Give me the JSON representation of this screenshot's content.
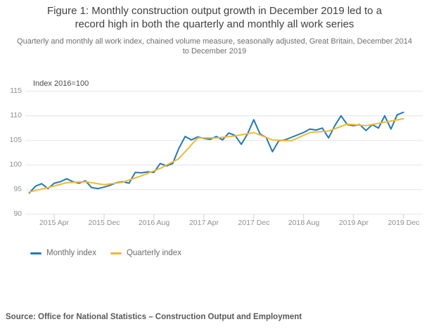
{
  "figure": {
    "title": "Figure 1: Monthly construction output growth in December 2019 led to a record high in both the quarterly and monthly all work series",
    "subtitle": "Quarterly and monthly all work index, chained volume measure, seasonally adjusted, Great Britain, December 2014 to December 2019",
    "source": "Source: Office for National Statistics – Construction Output and Employment"
  },
  "chart_data": {
    "type": "line",
    "title": "Quarterly and monthly all work index",
    "unit_label": "Index 2016=100",
    "grid": "horizontal",
    "legend_position": "bottom-left",
    "x_axis": {
      "start": "2014 Dec",
      "end": "2019 Dec",
      "tick_labels": [
        "2015 Apr",
        "2015 Dec",
        "2016 Aug",
        "2017 Apr",
        "2017 Dec",
        "2018 Aug",
        "2019 Apr",
        "2019 Dec"
      ],
      "tick_month_offsets": [
        4,
        12,
        20,
        28,
        36,
        44,
        52,
        60
      ]
    },
    "y_axis": {
      "ticks": [
        90,
        95,
        100,
        105,
        110,
        115
      ],
      "min": 90,
      "max": 116.5
    },
    "series": [
      {
        "name": "Monthly index",
        "color": "#2279b5",
        "frequency": "monthly",
        "month_step": 1,
        "values": [
          94.3,
          95.7,
          96.2,
          95.2,
          96.3,
          96.6,
          97.2,
          96.6,
          96.3,
          96.8,
          95.4,
          95.2,
          95.5,
          95.9,
          96.4,
          96.6,
          96.3,
          98.5,
          98.4,
          98.6,
          98.5,
          100.3,
          99.8,
          100.3,
          103.4,
          105.8,
          105.1,
          105.7,
          105.4,
          105.2,
          105.8,
          105.1,
          106.5,
          106.0,
          104.2,
          106.3,
          109.2,
          106.3,
          105.6,
          102.7,
          104.9,
          105.1,
          105.6,
          106.1,
          106.6,
          107.3,
          107.1,
          107.5,
          105.5,
          108.0,
          110.0,
          108.2,
          108.0,
          108.2,
          107.0,
          108.2,
          107.5,
          110.0,
          107.3,
          110.2,
          110.7
        ]
      },
      {
        "name": "Quarterly index",
        "color": "#f0b932",
        "frequency": "quarterly",
        "month_step": 3,
        "values": [
          94.5,
          95.4,
          96.4,
          96.6,
          96.0,
          96.5,
          97.8,
          99.3,
          101.3,
          105.5,
          105.5,
          105.9,
          106.6,
          105.1,
          104.9,
          106.6,
          106.9,
          108.3,
          108.0,
          108.7,
          109.4
        ]
      }
    ]
  }
}
